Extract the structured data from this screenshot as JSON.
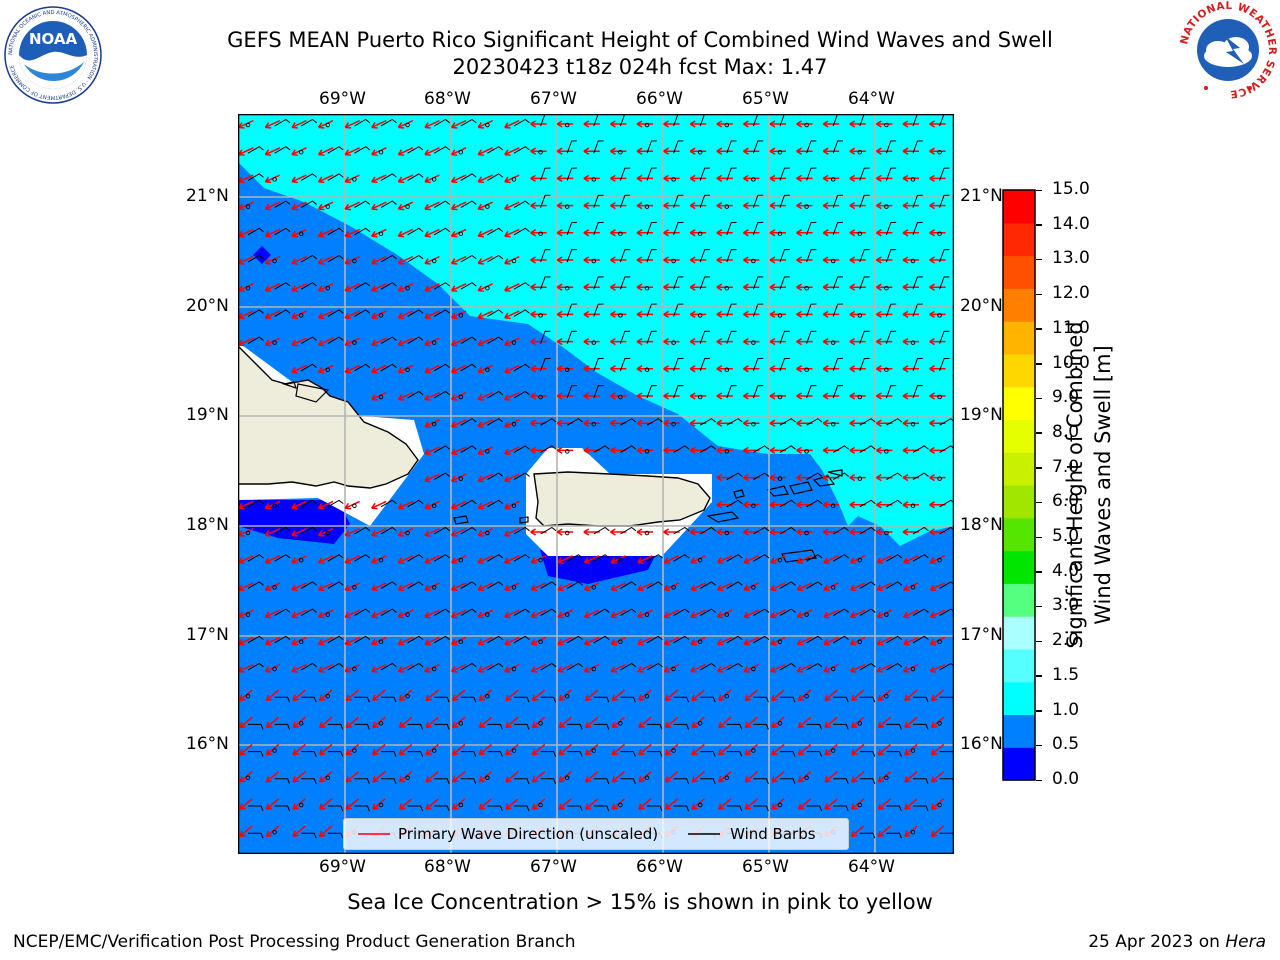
{
  "header": {
    "title_line1": "GEFS MEAN Puerto Rico Significant Height of Combined Wind Waves and Swell",
    "title_line2": "20230423 t18z 024h fcst   Max: 1.47",
    "noaa_logo_text": "NOAA",
    "noaa_ring_text": "NATIONAL OCEANIC AND ATMOSPHERIC ADMINISTRATION · U.S. DEPARTMENT OF COMMERCE",
    "nws_ring_text": "NATIONAL WEATHER SERVICE"
  },
  "map": {
    "lon_labels": [
      "69°W",
      "68°W",
      "67°W",
      "66°W",
      "65°W",
      "64°W"
    ],
    "lat_labels": [
      "21°N",
      "20°N",
      "19°N",
      "18°N",
      "17°N",
      "16°N"
    ],
    "colors": {
      "ocean_low": "#0000ff",
      "ocean_mid": "#0080ff",
      "ocean_high": "#00ffff",
      "land": "#eeeddc",
      "wave_arrow": "#ff0000",
      "wind_barb": "#000000",
      "grid": "#b4b4b4"
    },
    "legend": {
      "wave_label": "Primary Wave Direction (unscaled)",
      "barb_label": "Wind Barbs"
    }
  },
  "colorbar": {
    "label_line1": "Significant Height of Combined",
    "label_line2": "Wind Waves and Swell [m]",
    "ticks": [
      "0.0",
      "0.5",
      "1.0",
      "1.5",
      "2.0",
      "3.0",
      "4.0",
      "5.0",
      "6.0",
      "7.0",
      "8.0",
      "9.0",
      "10.0",
      "11.0",
      "12.0",
      "13.0",
      "14.0",
      "15.0"
    ],
    "colors": [
      "#0000ff",
      "#0080ff",
      "#00ffff",
      "#55ffff",
      "#aaffff",
      "#55ff80",
      "#00e600",
      "#55e600",
      "#a0e600",
      "#c8f000",
      "#e6ff00",
      "#ffff00",
      "#ffd700",
      "#ffb400",
      "#ff8000",
      "#ff5000",
      "#ff2800",
      "#ff0000"
    ]
  },
  "annotation": "Sea Ice Concentration > 15% is shown in pink to yellow",
  "footer": {
    "left": "NCEP/EMC/Verification Post Processing Product Generation Branch",
    "right_date": "25 Apr 2023 on ",
    "right_host": "Hera"
  }
}
